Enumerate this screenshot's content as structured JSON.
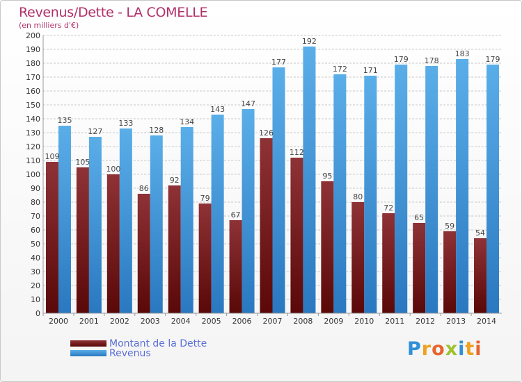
{
  "header": {
    "title": "Revenus/Dette - LA COMELLE",
    "subtitle": "(en milliers d'€)"
  },
  "logo": {
    "text": "Proxiti",
    "letters": [
      {
        "ch": "P",
        "color": "#2f8fd8"
      },
      {
        "ch": "r",
        "color": "#f0a020"
      },
      {
        "ch": "o",
        "color": "#e8642a"
      },
      {
        "ch": "x",
        "color": "#9ec22e"
      },
      {
        "ch": "i",
        "color": "#2f8fd8"
      },
      {
        "ch": "t",
        "color": "#f0a020"
      },
      {
        "ch": "i",
        "color": "#e8642a"
      }
    ]
  },
  "colors": {
    "dette_top": "#8e3236",
    "dette_bottom": "#5a0808",
    "revenus_top": "#5aaee8",
    "revenus_bottom": "#2a78c0",
    "grid": "#c8c8c8",
    "axis_text": "#333333"
  },
  "chart_data": {
    "type": "bar",
    "title": "Revenus/Dette - LA COMELLE",
    "subtitle": "(en milliers d'€)",
    "categories": [
      "2000",
      "2001",
      "2002",
      "2003",
      "2004",
      "2005",
      "2006",
      "2007",
      "2008",
      "2009",
      "2010",
      "2011",
      "2012",
      "2013",
      "2014"
    ],
    "series": [
      {
        "name": "Montant de la Dette",
        "values": [
          109,
          105,
          100,
          86,
          92,
          79,
          67,
          126,
          112,
          95,
          80,
          72,
          65,
          59,
          54
        ]
      },
      {
        "name": "Revenus",
        "values": [
          135,
          127,
          133,
          128,
          134,
          143,
          147,
          177,
          192,
          172,
          171,
          179,
          178,
          183,
          179
        ]
      }
    ],
    "ylim": [
      0,
      200
    ],
    "ytick_step": 10,
    "grid": true,
    "legend": "bottom-left"
  }
}
